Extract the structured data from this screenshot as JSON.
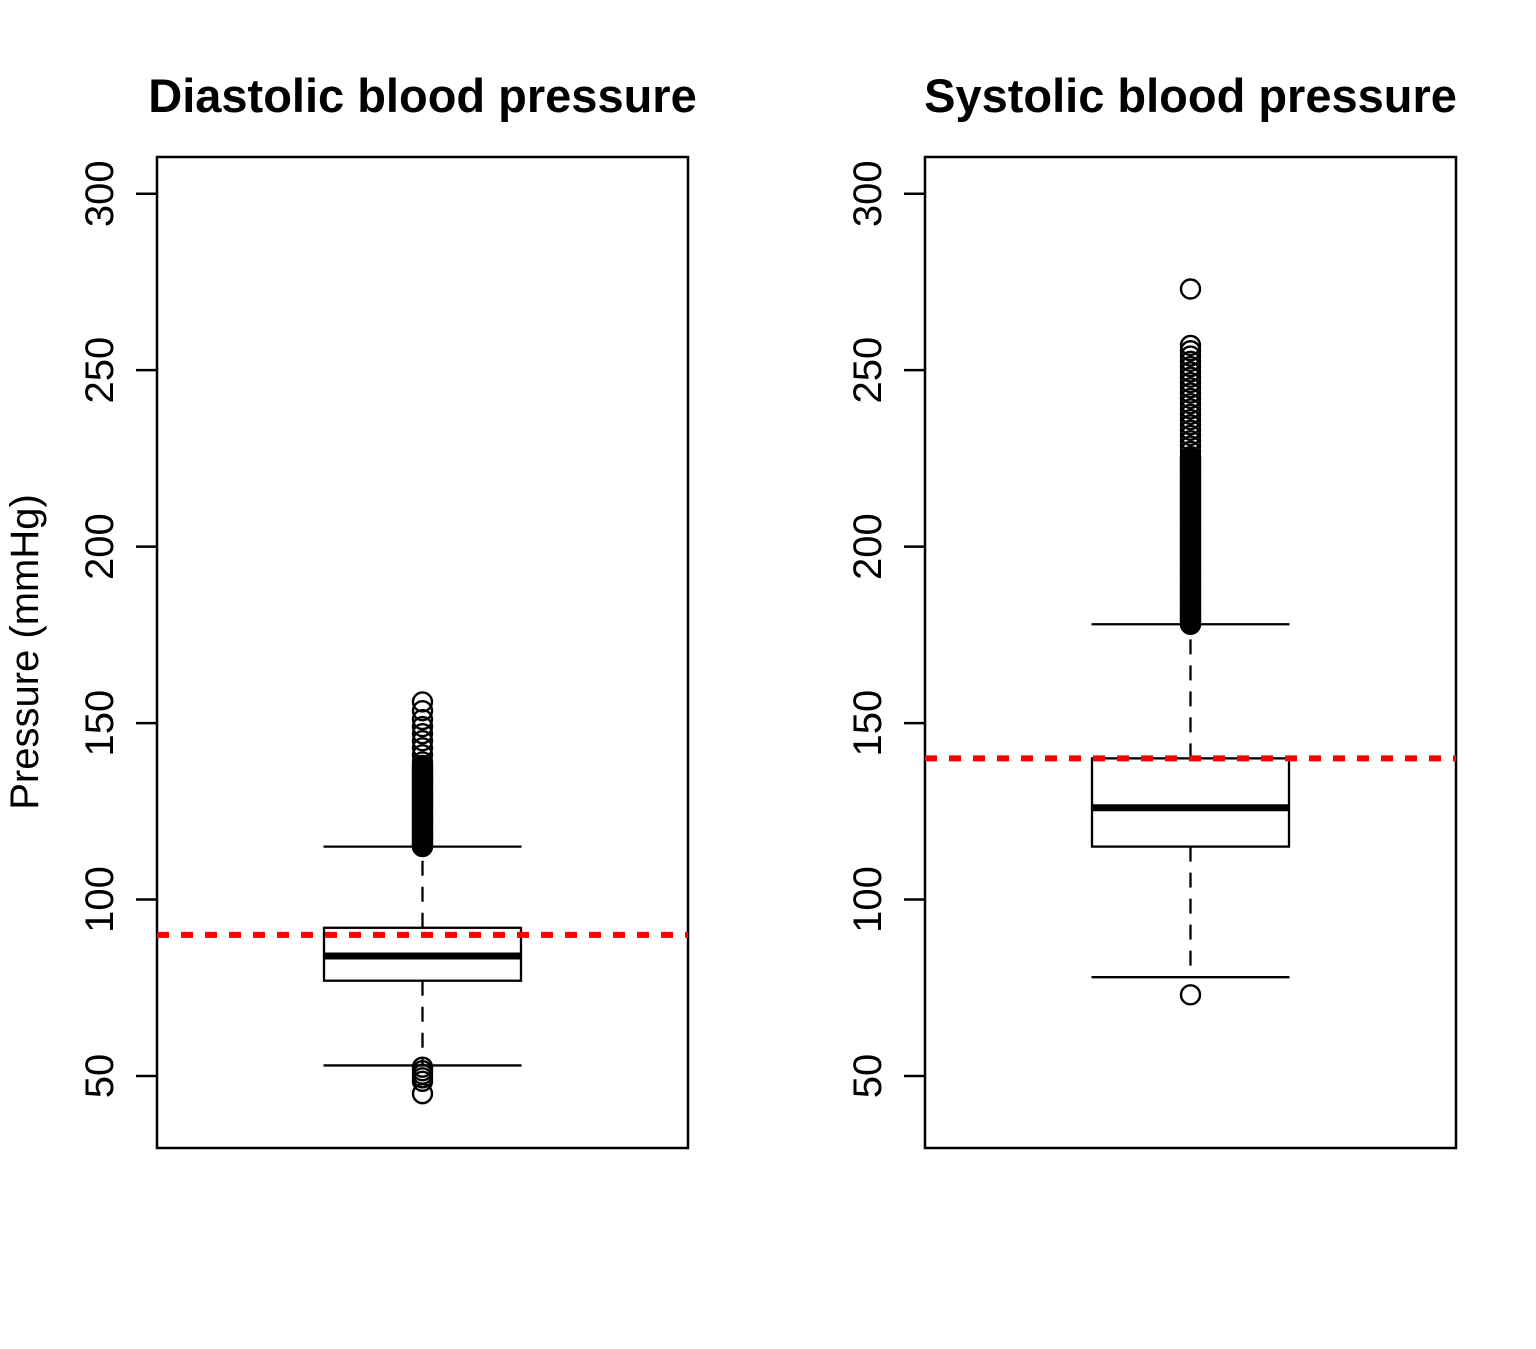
{
  "figure": {
    "background": "#ffffff",
    "colors": {
      "stroke": "#000000",
      "box_fill": "#ffffff",
      "reference_line": "#ff0000"
    }
  },
  "chart_data": [
    {
      "type": "boxplot",
      "title": "Diastolic blood pressure",
      "ylabel": "Pressure (mmHg)",
      "xlabel": "",
      "yticks": [
        50,
        100,
        150,
        200,
        250,
        300
      ],
      "ylim": [
        29.6,
        310.4
      ],
      "grid": false,
      "reference_line": 90,
      "stats": {
        "lower_whisker": 53,
        "q1": 77,
        "median": 84,
        "q3": 92,
        "upper_whisker": 115
      },
      "outliers_low": [
        52.5,
        51.5,
        50.5,
        49.5,
        48.5,
        45
      ],
      "outliers_high_dense": {
        "from": 115,
        "to": 138,
        "count": 48
      },
      "outliers_high": [
        139,
        141,
        143,
        145,
        147,
        149,
        151,
        153.5,
        156
      ]
    },
    {
      "type": "boxplot",
      "title": "Systolic blood pressure",
      "ylabel": "",
      "xlabel": "",
      "yticks": [
        50,
        100,
        150,
        200,
        250,
        300
      ],
      "ylim": [
        29.6,
        310.4
      ],
      "grid": false,
      "reference_line": 140,
      "stats": {
        "lower_whisker": 78,
        "q1": 115,
        "median": 126,
        "q3": 140,
        "upper_whisker": 178
      },
      "outliers_low": [
        73
      ],
      "outliers_high_dense": {
        "from": 178,
        "to": 225,
        "count": 90
      },
      "outliers_high_semi": {
        "from": 225.5,
        "to": 258,
        "step": 1.5
      },
      "outliers_high": [
        273
      ]
    }
  ]
}
